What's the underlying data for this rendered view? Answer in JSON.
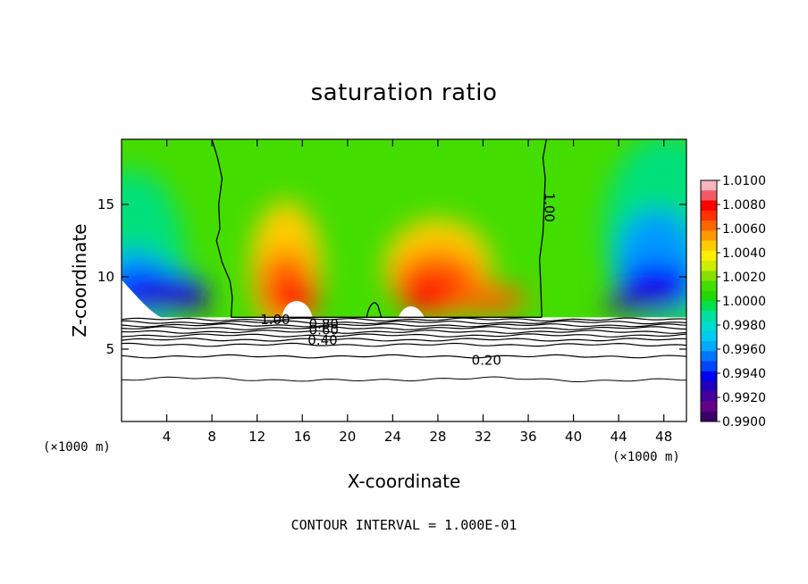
{
  "chart_data": {
    "type": "heatmap",
    "title": "saturation ratio",
    "xlabel": "X-coordinate",
    "ylabel": "Z-coordinate",
    "x_unit": "(×1000 m)",
    "y_unit": "(×1000 m)",
    "xlim": [
      0,
      50
    ],
    "ylim": [
      0,
      19.5
    ],
    "x_ticks": [
      4,
      8,
      12,
      16,
      20,
      24,
      28,
      32,
      36,
      40,
      44,
      48
    ],
    "y_ticks": [
      5,
      10,
      15
    ],
    "colorbar": {
      "range": [
        0.99,
        1.01
      ],
      "tick_labels": [
        "1.0100",
        "1.0080",
        "1.0060",
        "1.0040",
        "1.0020",
        "1.0000",
        "0.9980",
        "0.9960",
        "0.9940",
        "0.9920",
        "0.9900"
      ],
      "colors": [
        "#f49aa3",
        "#ff0000",
        "#ff6600",
        "#ffcc00",
        "#33cc00",
        "#00e07a",
        "#0099ff",
        "#0000ff",
        "#330099"
      ]
    },
    "contour_labels": [
      {
        "text": "1.00",
        "x": 37.8,
        "y": 14.8,
        "rotation": 90
      },
      {
        "text": "1.00",
        "x": 13.6,
        "y": 7.0,
        "rotation": 0
      },
      {
        "text": "0.80",
        "x": 17.9,
        "y": 6.7,
        "rotation": 0
      },
      {
        "text": "0.60",
        "x": 17.9,
        "y": 6.3,
        "rotation": 0
      },
      {
        "text": "0.40",
        "x": 17.8,
        "y": 5.6,
        "rotation": 0
      },
      {
        "text": "0.20",
        "x": 32.3,
        "y": 4.2,
        "rotation": 0
      }
    ],
    "footer": "CONTOUR INTERVAL = 1.000E-01"
  }
}
